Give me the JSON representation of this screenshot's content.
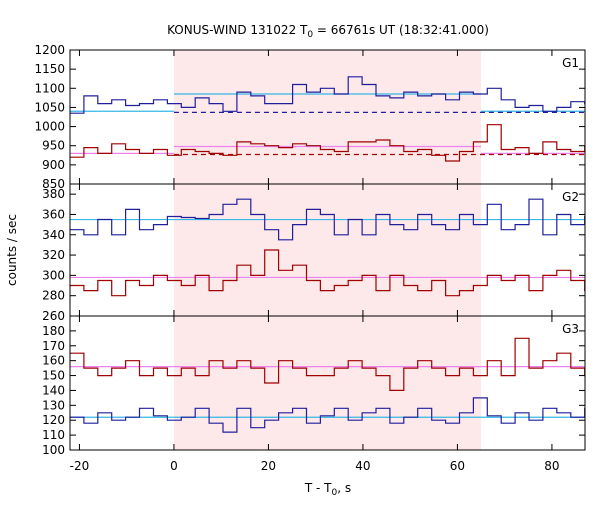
{
  "chart_data": {
    "type": "line",
    "title": {
      "prefix": "KONUS-WIND 131022 T",
      "sub": "0",
      "suffix": " = 66761s UT (18:32:41.000)"
    },
    "xlabel": {
      "prefix": "T - T",
      "sub": "0",
      "suffix": ", s"
    },
    "ylabel": "counts / sec",
    "xlim": [
      -22,
      87
    ],
    "xticks": [
      -20,
      0,
      20,
      40,
      60,
      80
    ],
    "shaded_interval": [
      0,
      65
    ],
    "colors": {
      "red": "#a00000",
      "blue": "#1f1f9c",
      "pink": "#ee82ee",
      "cyan": "#35b7e6",
      "shade": "#fde8ea"
    },
    "bin_start": -22,
    "bin_width": 2.944,
    "panels": [
      {
        "label": "G1",
        "ylim": [
          850,
          1200
        ],
        "yticks": [
          850,
          900,
          950,
          1000,
          1050,
          1100,
          1150,
          1200
        ],
        "series": [
          {
            "color": "blue",
            "values": [
              1035,
              1080,
              1060,
              1070,
              1055,
              1060,
              1070,
              1060,
              1050,
              1075,
              1060,
              1040,
              1090,
              1080,
              1060,
              1060,
              1110,
              1090,
              1100,
              1085,
              1130,
              1110,
              1080,
              1075,
              1090,
              1080,
              1085,
              1070,
              1090,
              1085,
              1100,
              1070,
              1050,
              1055,
              1040,
              1050,
              1065,
              1060,
              1045,
              1040
            ]
          },
          {
            "color": "red",
            "values": [
              920,
              945,
              930,
              955,
              940,
              930,
              940,
              925,
              940,
              935,
              930,
              925,
              960,
              955,
              950,
              945,
              955,
              950,
              940,
              935,
              960,
              960,
              965,
              950,
              935,
              940,
              925,
              910,
              935,
              960,
              1005,
              940,
              945,
              930,
              960,
              940,
              935,
              950,
              940,
              940
            ]
          }
        ],
        "reference_lines": [
          {
            "style": "solid",
            "color": "cyan",
            "value": 1040,
            "from": -22,
            "to": 0
          },
          {
            "style": "solid",
            "color": "cyan",
            "value": 1085,
            "from": 0,
            "to": 65
          },
          {
            "style": "solid",
            "color": "cyan",
            "value": 1040,
            "from": 65,
            "to": 87
          },
          {
            "style": "dashed",
            "color": "blue",
            "value": 1037,
            "from": 0,
            "to": 87
          },
          {
            "style": "solid",
            "color": "pink",
            "value": 930,
            "from": -22,
            "to": 0
          },
          {
            "style": "solid",
            "color": "pink",
            "value": 948,
            "from": 0,
            "to": 65
          },
          {
            "style": "solid",
            "color": "pink",
            "value": 930,
            "from": 65,
            "to": 87
          },
          {
            "style": "dashed",
            "color": "red",
            "value": 927,
            "from": 0,
            "to": 87
          }
        ]
      },
      {
        "label": "G2",
        "ylim": [
          260,
          390
        ],
        "yticks": [
          260,
          280,
          300,
          320,
          340,
          360,
          380
        ],
        "series": [
          {
            "color": "blue",
            "values": [
              345,
              340,
              355,
              340,
              365,
              345,
              350,
              358,
              357,
              356,
              360,
              370,
              375,
              360,
              345,
              335,
              350,
              365,
              360,
              340,
              355,
              340,
              360,
              350,
              345,
              360,
              350,
              345,
              360,
              350,
              370,
              345,
              350,
              375,
              340,
              360,
              350,
              358,
              340,
              360
            ]
          },
          {
            "color": "red",
            "values": [
              290,
              285,
              295,
              280,
              295,
              290,
              300,
              295,
              290,
              300,
              285,
              295,
              310,
              300,
              325,
              305,
              310,
              295,
              285,
              290,
              295,
              300,
              285,
              300,
              290,
              285,
              295,
              280,
              285,
              290,
              300,
              295,
              300,
              285,
              300,
              305,
              295,
              285,
              290,
              300
            ]
          }
        ],
        "reference_lines": [
          {
            "style": "solid",
            "color": "cyan",
            "value": 355,
            "from": -22,
            "to": 87
          },
          {
            "style": "solid",
            "color": "pink",
            "value": 298,
            "from": -22,
            "to": 87
          }
        ]
      },
      {
        "label": "G3",
        "ylim": [
          100,
          190
        ],
        "yticks": [
          100,
          110,
          120,
          130,
          140,
          150,
          160,
          170,
          180
        ],
        "series": [
          {
            "color": "red",
            "values": [
              165,
              155,
              150,
              155,
              160,
              150,
              155,
              150,
              155,
              150,
              160,
              155,
              160,
              155,
              145,
              160,
              155,
              150,
              150,
              155,
              160,
              155,
              150,
              140,
              155,
              160,
              155,
              150,
              155,
              150,
              160,
              150,
              175,
              155,
              160,
              165,
              155,
              150,
              160,
              150
            ]
          },
          {
            "color": "blue",
            "values": [
              122,
              118,
              125,
              120,
              122,
              128,
              123,
              120,
              122,
              128,
              118,
              112,
              128,
              115,
              120,
              125,
              128,
              118,
              123,
              128,
              120,
              125,
              128,
              118,
              122,
              128,
              120,
              118,
              125,
              135,
              123,
              118,
              125,
              120,
              128,
              125,
              122,
              128,
              130,
              118
            ]
          }
        ],
        "reference_lines": [
          {
            "style": "solid",
            "color": "pink",
            "value": 156,
            "from": -22,
            "to": 87
          },
          {
            "style": "solid",
            "color": "cyan",
            "value": 122,
            "from": -22,
            "to": 87
          }
        ]
      }
    ]
  }
}
